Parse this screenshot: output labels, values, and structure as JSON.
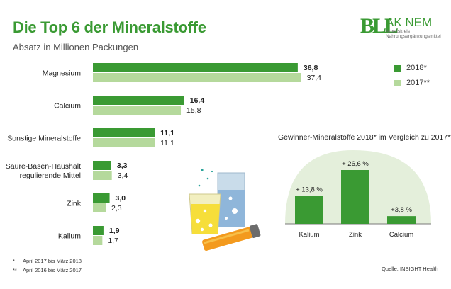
{
  "header": {
    "title": "Die Top 6 der Mineralstoffe",
    "subtitle": "Absatz in Millionen Packungen"
  },
  "logo": {
    "mark": "BLL",
    "name": "AK NEM",
    "sub_line1": "Arbeitskreis",
    "sub_line2": "Nahrungsergänzungsmittel"
  },
  "colors": {
    "series_2018": "#3a9a33",
    "series_2017": "#b5d99c",
    "title_green": "#3a9a33",
    "inset_background": "#e4efdb"
  },
  "chart_data": [
    {
      "type": "bar",
      "orientation": "horizontal",
      "title": "Die Top 6 der Mineralstoffe",
      "subtitle": "Absatz in Millionen Packungen",
      "categories": [
        "Magnesium",
        "Calcium",
        "Sonstige Mineralstoffe",
        "Säure-Basen-Haushalt regulierende Mittel",
        "Zink",
        "Kalium"
      ],
      "category_lines": [
        [
          "Magnesium"
        ],
        [
          "Calcium"
        ],
        [
          "Sonstige Mineralstoffe"
        ],
        [
          "Säure-Basen-Haushalt",
          "regulierende Mittel"
        ],
        [
          "Zink"
        ],
        [
          "Kalium"
        ]
      ],
      "series": [
        {
          "name": "2018*",
          "values": [
            36.8,
            16.4,
            11.1,
            3.3,
            3.0,
            1.9
          ],
          "labels": [
            "36,8",
            "16,4",
            "11,1",
            "3,3",
            "3,0",
            "1,9"
          ]
        },
        {
          "name": "2017**",
          "values": [
            37.4,
            15.8,
            11.1,
            3.4,
            2.3,
            1.7
          ],
          "labels": [
            "37,4",
            "15,8",
            "11,1",
            "3,4",
            "2,3",
            "1,7"
          ]
        }
      ],
      "xlim": [
        0,
        40
      ],
      "grid": false,
      "legend": "top-right"
    },
    {
      "type": "bar",
      "title": "Gewinner-Mineralstoffe 2018* im Vergleich zu 2017**",
      "categories": [
        "Kalium",
        "Zink",
        "Calcium"
      ],
      "values": [
        13.8,
        26.6,
        3.8
      ],
      "labels": [
        "+ 13,8 %",
        "+ 26,6 %",
        "+3,8 %"
      ],
      "ylim": [
        0,
        30
      ],
      "grid": false
    }
  ],
  "footnotes": [
    {
      "mark": "*",
      "text": "April 2017 bis März 2018"
    },
    {
      "mark": "**",
      "text": "April 2016 bis März 2017"
    }
  ],
  "source": "Quelle: INSIGHT Health"
}
